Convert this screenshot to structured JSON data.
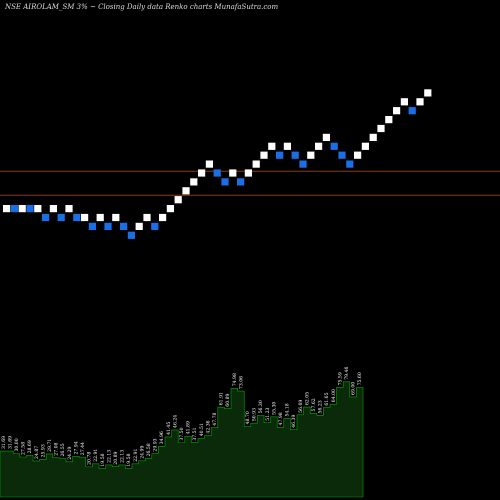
{
  "header": {
    "title": "NSE AIROLAM_SM 3% ~  Closing Daily data  Renko  charts MunafaSutra.com"
  },
  "colors": {
    "background": "#000000",
    "brick_up": "#ffffff",
    "brick_down": "#1a6fe6",
    "level_line": "#8b3a1a",
    "rsi_fill": "#0a2a0a",
    "rsi_line": "#00aa00",
    "rsi_text": "#ffffff",
    "title_text": "#dddddd"
  },
  "chart_data": [
    {
      "type": "renko",
      "title": "NSE AIROLAM_SM 3% ~  Closing Daily data  Renko  charts MunafaSutra.com",
      "brick_size_pct": 3,
      "ylim": [
        0,
        22
      ],
      "bricks": [
        {
          "level": 6,
          "dir": "up"
        },
        {
          "level": 6,
          "dir": "down"
        },
        {
          "level": 6,
          "dir": "up"
        },
        {
          "level": 6,
          "dir": "down"
        },
        {
          "level": 6,
          "dir": "up"
        },
        {
          "level": 5,
          "dir": "down"
        },
        {
          "level": 6,
          "dir": "up"
        },
        {
          "level": 5,
          "dir": "down"
        },
        {
          "level": 6,
          "dir": "up"
        },
        {
          "level": 5,
          "dir": "down"
        },
        {
          "level": 5,
          "dir": "up"
        },
        {
          "level": 4,
          "dir": "down"
        },
        {
          "level": 5,
          "dir": "up"
        },
        {
          "level": 4,
          "dir": "down"
        },
        {
          "level": 5,
          "dir": "up"
        },
        {
          "level": 4,
          "dir": "down"
        },
        {
          "level": 3,
          "dir": "down"
        },
        {
          "level": 4,
          "dir": "up"
        },
        {
          "level": 5,
          "dir": "up"
        },
        {
          "level": 4,
          "dir": "down"
        },
        {
          "level": 5,
          "dir": "up"
        },
        {
          "level": 6,
          "dir": "up"
        },
        {
          "level": 7,
          "dir": "up"
        },
        {
          "level": 8,
          "dir": "up"
        },
        {
          "level": 9,
          "dir": "up"
        },
        {
          "level": 10,
          "dir": "up"
        },
        {
          "level": 11,
          "dir": "up"
        },
        {
          "level": 10,
          "dir": "down"
        },
        {
          "level": 9,
          "dir": "down"
        },
        {
          "level": 10,
          "dir": "up"
        },
        {
          "level": 9,
          "dir": "down"
        },
        {
          "level": 10,
          "dir": "up"
        },
        {
          "level": 11,
          "dir": "up"
        },
        {
          "level": 12,
          "dir": "up"
        },
        {
          "level": 13,
          "dir": "up"
        },
        {
          "level": 12,
          "dir": "down"
        },
        {
          "level": 13,
          "dir": "up"
        },
        {
          "level": 12,
          "dir": "down"
        },
        {
          "level": 11,
          "dir": "down"
        },
        {
          "level": 12,
          "dir": "up"
        },
        {
          "level": 13,
          "dir": "up"
        },
        {
          "level": 14,
          "dir": "up"
        },
        {
          "level": 13,
          "dir": "down"
        },
        {
          "level": 12,
          "dir": "down"
        },
        {
          "level": 11,
          "dir": "down"
        },
        {
          "level": 12,
          "dir": "up"
        },
        {
          "level": 13,
          "dir": "up"
        },
        {
          "level": 14,
          "dir": "up"
        },
        {
          "level": 15,
          "dir": "up"
        },
        {
          "level": 16,
          "dir": "up"
        },
        {
          "level": 17,
          "dir": "up"
        },
        {
          "level": 18,
          "dir": "up"
        },
        {
          "level": 17,
          "dir": "down"
        },
        {
          "level": 18,
          "dir": "up"
        },
        {
          "level": 19,
          "dir": "up"
        }
      ],
      "levels": [
        10.2,
        7.5
      ]
    },
    {
      "type": "area",
      "ylim": [
        0,
        100
      ],
      "values": [
        31.69,
        31.69,
        30.0,
        27.58,
        28.69,
        24.87,
        25.93,
        29.71,
        27.08,
        26.55,
        24.29,
        27.94,
        27.44,
        20.78,
        22.91,
        19.58,
        22.13,
        20.89,
        22.13,
        19.58,
        22.91,
        24.99,
        26.58,
        29.93,
        34.96,
        41.45,
        46.24,
        37.5,
        41.89,
        37.51,
        40.51,
        42.36,
        47.78,
        61.91,
        60.89,
        74.98,
        73.06,
        48.7,
        50.93,
        56.3,
        51.23,
        55.3,
        47.98,
        54.18,
        46.39,
        56.69,
        62.05,
        57.62,
        56.23,
        61.65,
        64.0,
        75.59,
        79.46,
        69.0,
        75.6
      ],
      "labels": [
        "31.69",
        "31.69",
        "30.00",
        "27.58",
        "28.69",
        "24.87",
        "25.93",
        "29.71",
        "27.08",
        "26.55",
        "24.29",
        "27.94",
        "27.44",
        "20.78",
        "22.91",
        "19.58",
        "22.13",
        "20.89",
        "22.13",
        "19.58",
        "22.91",
        "24.99",
        "26.58",
        "29.93",
        "34.96",
        "41.45",
        "46.24",
        "37.50",
        "41.89",
        "37.51",
        "40.51",
        "42.36",
        "47.78",
        "61.91",
        "60.89",
        "74.98",
        "73.06",
        "48.70",
        "50.93",
        "56.30",
        "51.23",
        "55.30",
        "47.98",
        "54.18",
        "46.39",
        "56.69",
        "62.05",
        "57.62",
        "56.23",
        "61.65",
        "64.00",
        "75.59",
        "79.46",
        "69.00",
        "75.60"
      ]
    }
  ]
}
